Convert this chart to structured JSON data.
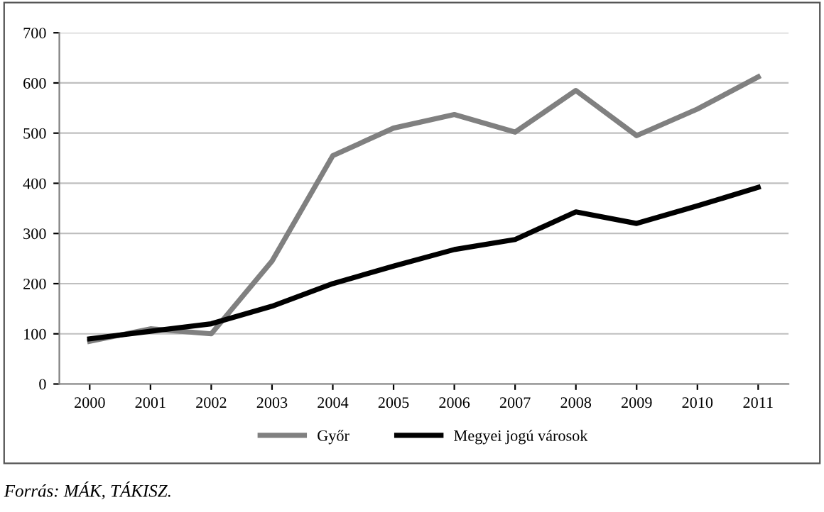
{
  "chart_data": {
    "type": "line",
    "categories": [
      "2000",
      "2001",
      "2002",
      "2003",
      "2004",
      "2005",
      "2006",
      "2007",
      "2008",
      "2009",
      "2010",
      "2011"
    ],
    "series": [
      {
        "name": "Győr",
        "color": "#808080",
        "values": [
          85,
          110,
          100,
          245,
          455,
          510,
          537,
          502,
          585,
          495,
          548,
          612
        ]
      },
      {
        "name": "Megyei jogú városok",
        "color": "#000000",
        "values": [
          90,
          105,
          120,
          155,
          200,
          235,
          268,
          288,
          343,
          320,
          355,
          392
        ]
      }
    ],
    "ylim": [
      0,
      700
    ],
    "yticks": [
      0,
      100,
      200,
      300,
      400,
      500,
      600,
      700
    ],
    "grid": "y",
    "legend": "bottom",
    "marker": "none",
    "line_style": "solid",
    "annotations": [
      "Forrás: MÁK, TÁKISZ."
    ]
  }
}
